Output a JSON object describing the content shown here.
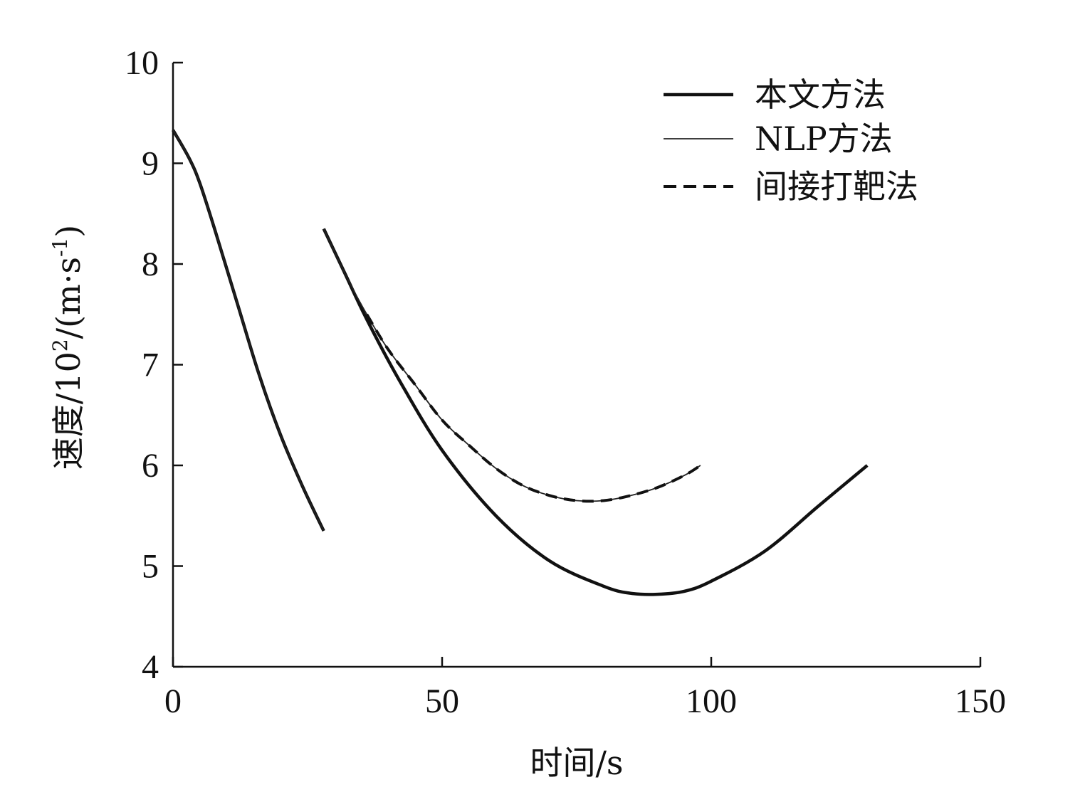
{
  "chart_data": {
    "type": "line",
    "xlabel": "时间/s",
    "ylabel": {
      "main": "速度/10",
      "sup1": "2",
      "mid": "/(m·s",
      "sup2": "-1",
      "end": ")"
    },
    "xlim": [
      0,
      150
    ],
    "ylim": [
      4,
      10
    ],
    "xticks": [
      0,
      50,
      100,
      150
    ],
    "yticks": [
      4,
      5,
      6,
      7,
      8,
      9,
      10
    ],
    "grid": false,
    "legend_position": "top-right",
    "legend": [
      {
        "label": "本文方法",
        "style": "thick-solid"
      },
      {
        "label": "NLP方法",
        "style": "thin-solid"
      },
      {
        "label": "间接打靶法",
        "style": "dashed"
      }
    ],
    "series": [
      {
        "name": "本文方法",
        "style": "thick-solid",
        "segments": [
          {
            "x": [
              0,
              3,
              5,
              8,
              12,
              16,
              20,
              24,
              28
            ],
            "y": [
              9.33,
              9.05,
              8.8,
              8.3,
              7.6,
              6.9,
              6.3,
              5.8,
              5.35
            ]
          },
          {
            "x": [
              28,
              32,
              36,
              42,
              50,
              60,
              70,
              80,
              85,
              90,
              95,
              100,
              110,
              120,
              129
            ],
            "y": [
              8.35,
              7.9,
              7.45,
              6.85,
              6.15,
              5.5,
              5.05,
              4.8,
              4.73,
              4.72,
              4.75,
              4.85,
              5.15,
              5.6,
              6.0
            ]
          }
        ]
      },
      {
        "name": "NLP方法",
        "style": "thin-solid",
        "segments": [
          {
            "x": [
              0,
              3,
              5,
              8,
              12,
              16,
              20,
              24,
              28
            ],
            "y": [
              9.33,
              9.05,
              8.8,
              8.3,
              7.6,
              6.9,
              6.3,
              5.8,
              5.35
            ]
          },
          {
            "x": [
              28,
              32,
              36,
              40,
              45,
              50,
              55,
              60,
              65,
              70,
              75,
              80,
              85,
              90,
              95,
              98
            ],
            "y": [
              8.35,
              7.9,
              7.5,
              7.15,
              6.8,
              6.45,
              6.2,
              5.97,
              5.8,
              5.7,
              5.65,
              5.65,
              5.7,
              5.78,
              5.9,
              6.0
            ]
          }
        ]
      },
      {
        "name": "间接打靶法",
        "style": "dashed",
        "segments": [
          {
            "x": [
              36,
              40,
              45,
              50,
              55,
              60,
              65,
              70,
              75,
              80,
              85,
              90,
              95,
              98
            ],
            "y": [
              7.5,
              7.15,
              6.8,
              6.45,
              6.2,
              5.97,
              5.8,
              5.7,
              5.65,
              5.65,
              5.7,
              5.78,
              5.9,
              6.0
            ]
          }
        ]
      }
    ]
  }
}
